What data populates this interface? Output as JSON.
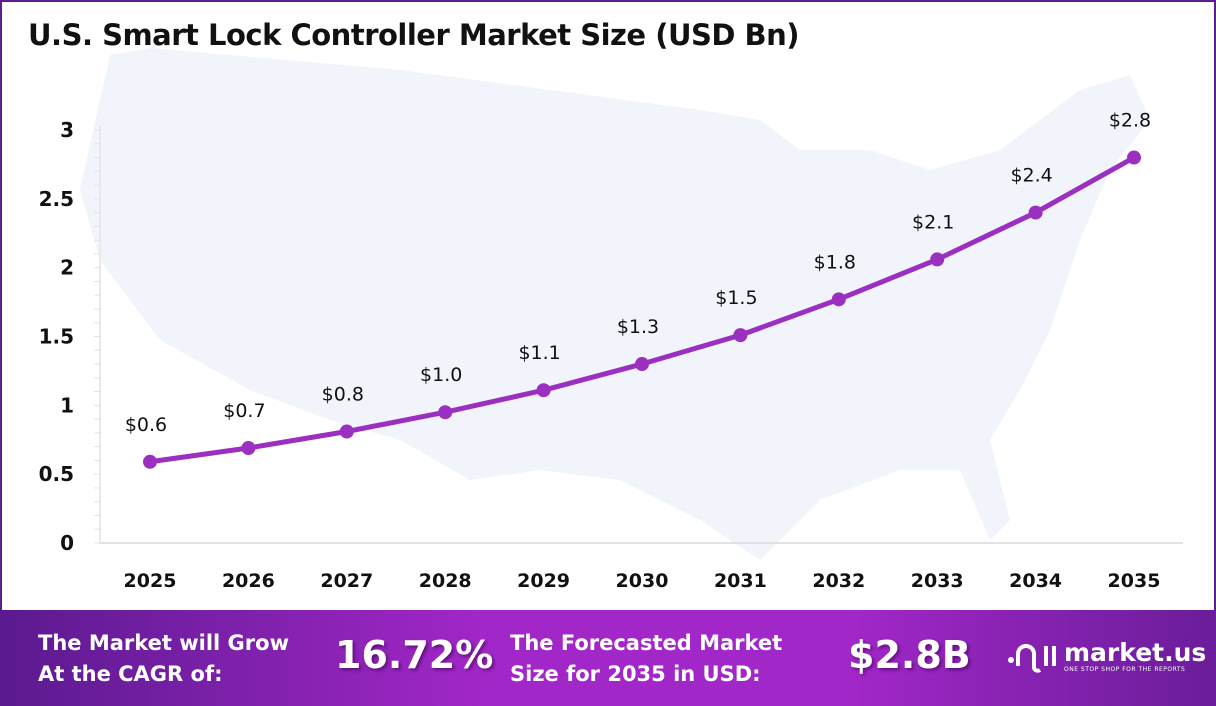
{
  "chart_data": {
    "type": "line",
    "title": "U.S. Smart Lock Controller Market Size (USD Bn)",
    "categories": [
      "2025",
      "2026",
      "2027",
      "2028",
      "2029",
      "2030",
      "2031",
      "2032",
      "2033",
      "2034",
      "2035"
    ],
    "values": [
      0.59,
      0.69,
      0.81,
      0.95,
      1.11,
      1.3,
      1.51,
      1.77,
      2.06,
      2.4,
      2.8
    ],
    "data_labels": [
      "$0.6",
      "$0.7",
      "$0.8",
      "$1.0",
      "$1.1",
      "$1.3",
      "$1.5",
      "$1.8",
      "$2.1",
      "$2.4",
      "$2.8"
    ],
    "yticks": [
      "0",
      "0.5",
      "1",
      "1.5",
      "2",
      "2.5",
      "3"
    ],
    "ylim": [
      0,
      3
    ],
    "grid": false,
    "line_color": "#9b30c0",
    "xlabel": "",
    "ylabel": ""
  },
  "footer": {
    "cagr_label_1": "The Market will Grow",
    "cagr_label_2": "At the CAGR of:",
    "cagr_value": "16.72%",
    "forecast_label_1": "The Forecasted Market",
    "forecast_label_2": "Size for 2035 in USD:",
    "forecast_value": "$2.8B",
    "logo_name": "market.us",
    "logo_tagline": "ONE STOP SHOP FOR THE REPORTS"
  }
}
